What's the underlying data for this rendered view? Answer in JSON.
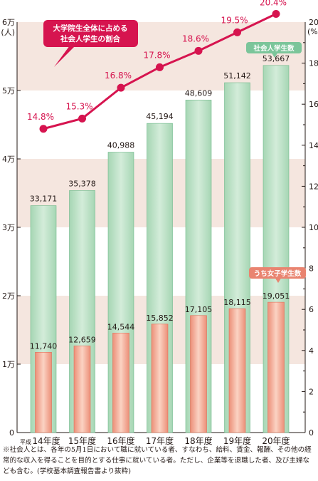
{
  "chart_data": {
    "type": "bar+line",
    "categories": [
      "14年度",
      "15年度",
      "16年度",
      "17年度",
      "18年度",
      "19年度",
      "20年度"
    ],
    "era_prefix": "平成",
    "series": [
      {
        "name": "社会人学生数",
        "axis": "left",
        "type": "bar",
        "values": [
          33171,
          35378,
          40988,
          45194,
          48609,
          51142,
          53667
        ],
        "labels": [
          "33,171",
          "35,378",
          "40,988",
          "45,194",
          "48,609",
          "51,142",
          "53,667"
        ],
        "color": "#b9dfc2"
      },
      {
        "name": "うち女子学生数",
        "axis": "left",
        "type": "bar",
        "values": [
          11740,
          12659,
          14544,
          15852,
          17105,
          18115,
          19051
        ],
        "labels": [
          "11,740",
          "12,659",
          "14,544",
          "15,852",
          "17,105",
          "18,115",
          "19,051"
        ],
        "color": "#f2a58f"
      },
      {
        "name": "大学院生全体に占める社会人学生の割合",
        "axis": "right",
        "type": "line",
        "values": [
          14.8,
          15.3,
          16.8,
          17.8,
          18.6,
          19.5,
          20.4
        ],
        "labels": [
          "14.8%",
          "15.3%",
          "16.8%",
          "17.8%",
          "18.6%",
          "19.5%",
          "20.4%"
        ],
        "color": "#d6144f"
      }
    ],
    "left_axis": {
      "unit_top": "6万",
      "unit_paren": "(人)",
      "ylim": [
        0,
        60000
      ],
      "ticks": [
        10000,
        20000,
        30000,
        40000,
        50000
      ],
      "tick_labels": [
        "1万",
        "2万",
        "3万",
        "4万",
        "5万"
      ],
      "zero_label": "0"
    },
    "right_axis": {
      "unit": "(%)",
      "ylim": [
        0,
        20
      ],
      "ticks": [
        2,
        4,
        6,
        8,
        10,
        12,
        14,
        16,
        18,
        20
      ],
      "tick_labels": [
        "2",
        "4",
        "6",
        "8",
        "10",
        "12",
        "14",
        "16",
        "18",
        "20"
      ],
      "zero_label": "0"
    },
    "callouts": {
      "line_label": "大学院生全体に占める\n社会人学生の割合",
      "bar_label": "社会人学生数",
      "female_label": "うち女子学生数"
    },
    "colors": {
      "band": "#f5e6df",
      "line": "#d6144f",
      "bar_green": "#b9dfc2",
      "bar_green_edge": "#6fb88a",
      "bar_pink": "#f2a58f",
      "bar_pink_edge": "#e06e57",
      "callout_green": "#7bc59a",
      "callout_pink": "#e98470"
    }
  },
  "footnote": "※社会人とは、各年の5月1日において職に就いている者、すなわち、給料、賃金、報酬、その他の経常的な収入を得ることを目的とする仕事に就いている者。ただし、企業等を退職した者、及び主婦なども含む。(学校基本調査報告書より抜粋)"
}
